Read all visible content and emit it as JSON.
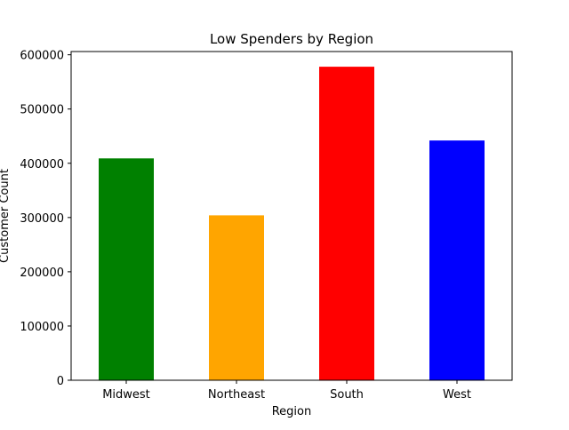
{
  "chart_data": {
    "type": "bar",
    "title": "Low Spenders by Region",
    "xlabel": "Region",
    "ylabel": "Customer Count",
    "categories": [
      "Midwest",
      "Northeast",
      "South",
      "West"
    ],
    "values": [
      409000,
      304000,
      578000,
      442000
    ],
    "colors": [
      "#008000",
      "#ffa500",
      "#ff0000",
      "#0000ff"
    ],
    "ylim": [
      0,
      606000
    ],
    "yticks": [
      0,
      100000,
      200000,
      300000,
      400000,
      500000,
      600000
    ],
    "ytick_labels": [
      "0",
      "100000",
      "200000",
      "300000",
      "400000",
      "500000",
      "600000"
    ],
    "grid": false,
    "legend": "none"
  }
}
